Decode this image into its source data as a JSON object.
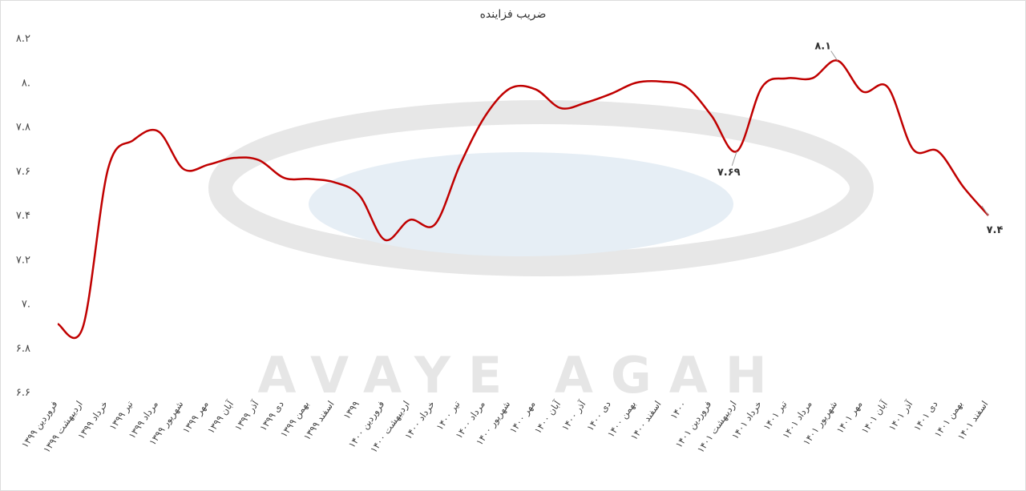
{
  "chart_data": {
    "type": "line",
    "title": "ضریب فزاینده",
    "watermark": "AVAYE AGAH",
    "categories": [
      "فروردین ۱۳۹۹",
      "اردیبهشت ۱۳۹۹",
      "خرداد ۱۳۹۹",
      "تیر ۱۳۹۹",
      "مرداد ۱۳۹۹",
      "شهریور ۱۳۹۹",
      "مهر ۱۳۹۹",
      "آبان ۱۳۹۹",
      "آذر ۱۳۹۹",
      "دی ۱۳۹۹",
      "بهمن ۱۳۹۹",
      "اسفند ۱۳۹۹",
      "۱۳۹۹",
      "فروردین ۱۴۰۰",
      "اردیبهشت ۱۴۰۰",
      "خرداد ۱۴۰۰",
      "تیر ۱۴۰۰",
      "مرداد ۱۴۰۰",
      "شهریور ۱۴۰۰",
      "مهر ۱۴۰۰",
      "آبان ۱۴۰۰",
      "آذر ۱۴۰۰",
      "دی ۱۴۰۰",
      "بهمن ۱۴۰۰",
      "اسفند ۱۴۰۰",
      "۱۴۰۰",
      "فروردین ۱۴۰۱",
      "اردیبهشت ۱۴۰۱",
      "خرداد ۱۴۰۱",
      "تیر ۱۴۰۱",
      "مرداد ۱۴۰۱",
      "شهریور ۱۴۰۱",
      "مهر ۱۴۰۱",
      "آبان ۱۴۰۱",
      "آذر ۱۴۰۱",
      "دی ۱۴۰۱",
      "بهمن ۱۴۰۱",
      "اسفند ۱۴۰۱"
    ],
    "series": [
      {
        "name": "ضریب فزاینده",
        "color": "#c00000",
        "values": [
          6.91,
          6.895,
          7.61,
          7.74,
          7.78,
          7.61,
          7.63,
          7.66,
          7.65,
          7.57,
          7.565,
          7.55,
          7.49,
          7.29,
          7.38,
          7.36,
          7.63,
          7.85,
          7.975,
          7.97,
          7.885,
          7.91,
          7.95,
          8.0,
          8.005,
          7.98,
          7.85,
          7.69,
          7.98,
          8.02,
          8.02,
          8.1,
          7.96,
          7.98,
          7.7,
          7.69,
          7.53,
          7.4
        ],
        "value_labels": [
          null,
          null,
          null,
          null,
          null,
          null,
          null,
          null,
          null,
          null,
          null,
          null,
          null,
          null,
          null,
          null,
          null,
          null,
          null,
          null,
          null,
          null,
          null,
          null,
          null,
          null,
          null,
          "۷.۶۹",
          null,
          null,
          null,
          "۸.۱",
          null,
          null,
          null,
          null,
          null,
          "۷.۴"
        ]
      }
    ],
    "ylim": [
      6.6,
      8.2
    ],
    "yticks": [
      {
        "value": 6.6,
        "label": "۶.۶"
      },
      {
        "value": 6.8,
        "label": "۶.۸"
      },
      {
        "value": 7.0,
        "label": "۷."
      },
      {
        "value": 7.2,
        "label": "۷.۲"
      },
      {
        "value": 7.4,
        "label": "۷.۴"
      },
      {
        "value": 7.6,
        "label": "۷.۶"
      },
      {
        "value": 7.8,
        "label": "۷.۸"
      },
      {
        "value": 8.0,
        "label": "۸."
      },
      {
        "value": 8.2,
        "label": "۸.۲"
      }
    ],
    "grid": false
  }
}
